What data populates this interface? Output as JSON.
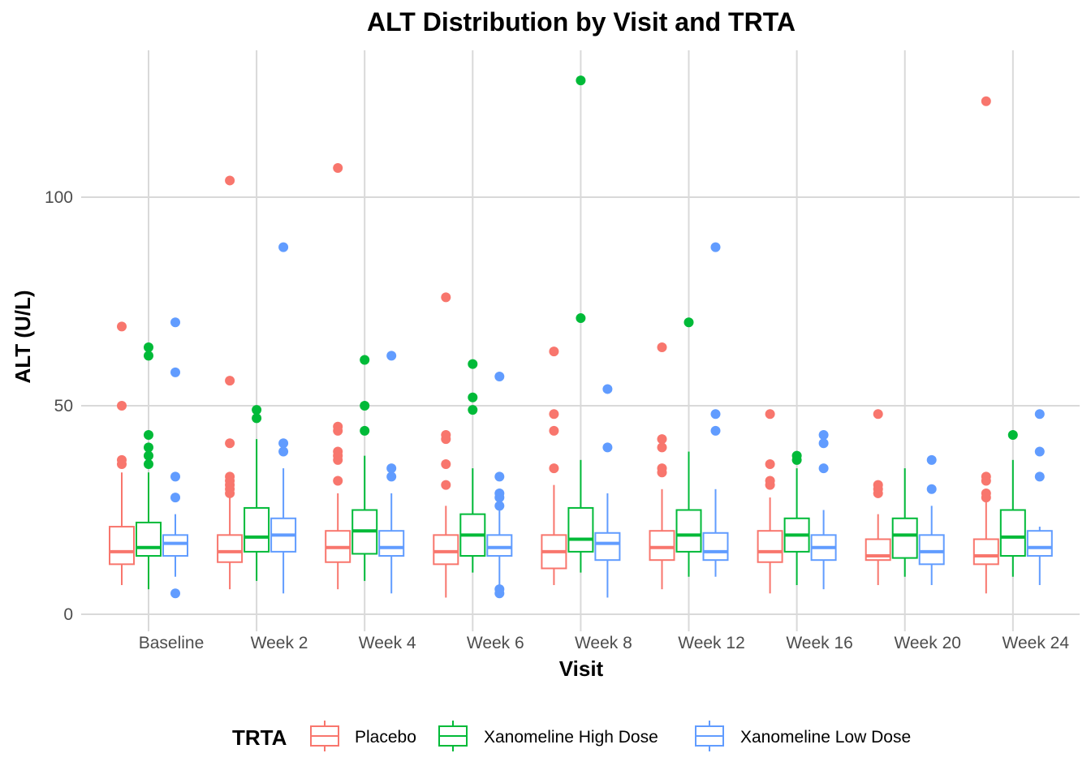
{
  "chart_data": {
    "type": "boxplot",
    "title": "ALT Distribution by Visit and TRTA",
    "xlabel": "Visit",
    "ylabel": "ALT (U/L)",
    "ylim": [
      -4,
      135
    ],
    "yticks": [
      0,
      50,
      100
    ],
    "grid": true,
    "legend_position": "bottom",
    "legend_title": "TRTA",
    "categories": [
      "Baseline",
      "Week 2",
      "Week 4",
      "Week 6",
      "Week 8",
      "Week 12",
      "Week 16",
      "Week 20",
      "Week 24"
    ],
    "series": [
      {
        "name": "Placebo",
        "color": "#F8766D",
        "boxes": [
          {
            "whisker_low": 7,
            "q1": 12,
            "median": 15,
            "q3": 21,
            "whisker_high": 34,
            "outliers": [
              36,
              37,
              50,
              69
            ]
          },
          {
            "whisker_low": 6,
            "q1": 12.5,
            "median": 15,
            "q3": 19,
            "whisker_high": 28,
            "outliers": [
              29,
              30,
              31,
              32,
              33,
              41,
              56,
              104
            ]
          },
          {
            "whisker_low": 6,
            "q1": 12.5,
            "median": 16,
            "q3": 20,
            "whisker_high": 29,
            "outliers": [
              32,
              37,
              38,
              39,
              44,
              45,
              107
            ]
          },
          {
            "whisker_low": 4,
            "q1": 12,
            "median": 15,
            "q3": 19,
            "whisker_high": 26,
            "outliers": [
              31,
              36,
              42,
              43,
              76
            ]
          },
          {
            "whisker_low": 7,
            "q1": 11,
            "median": 15,
            "q3": 19,
            "whisker_high": 31,
            "outliers": [
              35,
              44,
              48,
              63
            ]
          },
          {
            "whisker_low": 6,
            "q1": 13,
            "median": 16,
            "q3": 20,
            "whisker_high": 30,
            "outliers": [
              34,
              35,
              40,
              42,
              64
            ]
          },
          {
            "whisker_low": 5,
            "q1": 12.5,
            "median": 15,
            "q3": 20,
            "whisker_high": 28,
            "outliers": [
              31,
              32,
              36,
              48
            ]
          },
          {
            "whisker_low": 7,
            "q1": 13,
            "median": 14,
            "q3": 18,
            "whisker_high": 24,
            "outliers": [
              29,
              30,
              31,
              48
            ]
          },
          {
            "whisker_low": 5,
            "q1": 12,
            "median": 14,
            "q3": 18,
            "whisker_high": 27,
            "outliers": [
              28,
              29,
              32,
              33,
              123
            ]
          }
        ]
      },
      {
        "name": "Xanomeline High Dose",
        "color": "#00BA38",
        "boxes": [
          {
            "whisker_low": 6,
            "q1": 14,
            "median": 16,
            "q3": 22,
            "whisker_high": 34,
            "outliers": [
              36,
              38,
              40,
              43,
              62,
              64
            ]
          },
          {
            "whisker_low": 8,
            "q1": 15,
            "median": 18.5,
            "q3": 25.5,
            "whisker_high": 42,
            "outliers": [
              47,
              49
            ]
          },
          {
            "whisker_low": 8,
            "q1": 14.5,
            "median": 20,
            "q3": 25,
            "whisker_high": 38,
            "outliers": [
              44,
              50,
              61
            ]
          },
          {
            "whisker_low": 10,
            "q1": 14,
            "median": 19,
            "q3": 24,
            "whisker_high": 35,
            "outliers": [
              49,
              52,
              60
            ]
          },
          {
            "whisker_low": 10,
            "q1": 15,
            "median": 18,
            "q3": 25.5,
            "whisker_high": 37,
            "outliers": [
              71,
              128
            ]
          },
          {
            "whisker_low": 9,
            "q1": 15,
            "median": 19,
            "q3": 25,
            "whisker_high": 39,
            "outliers": [
              70
            ]
          },
          {
            "whisker_low": 7,
            "q1": 15,
            "median": 19,
            "q3": 23,
            "whisker_high": 35,
            "outliers": [
              37,
              38
            ]
          },
          {
            "whisker_low": 9,
            "q1": 13.5,
            "median": 19,
            "q3": 23,
            "whisker_high": 35,
            "outliers": []
          },
          {
            "whisker_low": 9,
            "q1": 14,
            "median": 18.5,
            "q3": 25,
            "whisker_high": 37,
            "outliers": [
              43
            ]
          }
        ]
      },
      {
        "name": "Xanomeline Low Dose",
        "color": "#619CFF",
        "boxes": [
          {
            "whisker_low": 9,
            "q1": 14,
            "median": 17,
            "q3": 19,
            "whisker_high": 24,
            "outliers": [
              5,
              28,
              33,
              58,
              70
            ]
          },
          {
            "whisker_low": 5,
            "q1": 15,
            "median": 19,
            "q3": 23,
            "whisker_high": 35,
            "outliers": [
              39,
              41,
              88
            ]
          },
          {
            "whisker_low": 5,
            "q1": 14,
            "median": 16,
            "q3": 20,
            "whisker_high": 29,
            "outliers": [
              33,
              35,
              62
            ]
          },
          {
            "whisker_low": 6,
            "q1": 14,
            "median": 16,
            "q3": 19,
            "whisker_high": 25,
            "outliers": [
              5,
              6,
              26,
              28,
              29,
              33,
              57
            ]
          },
          {
            "whisker_low": 4,
            "q1": 13,
            "median": 17,
            "q3": 19.5,
            "whisker_high": 29,
            "outliers": [
              40,
              54
            ]
          },
          {
            "whisker_low": 9,
            "q1": 13,
            "median": 15,
            "q3": 19.5,
            "whisker_high": 30,
            "outliers": [
              44,
              48,
              88
            ]
          },
          {
            "whisker_low": 6,
            "q1": 13,
            "median": 16,
            "q3": 19,
            "whisker_high": 25,
            "outliers": [
              35,
              41,
              43
            ]
          },
          {
            "whisker_low": 7,
            "q1": 12,
            "median": 15,
            "q3": 19,
            "whisker_high": 26,
            "outliers": [
              30,
              37
            ]
          },
          {
            "whisker_low": 7,
            "q1": 14,
            "median": 16,
            "q3": 20,
            "whisker_high": 21,
            "outliers": [
              33,
              39,
              48
            ]
          }
        ]
      }
    ]
  }
}
